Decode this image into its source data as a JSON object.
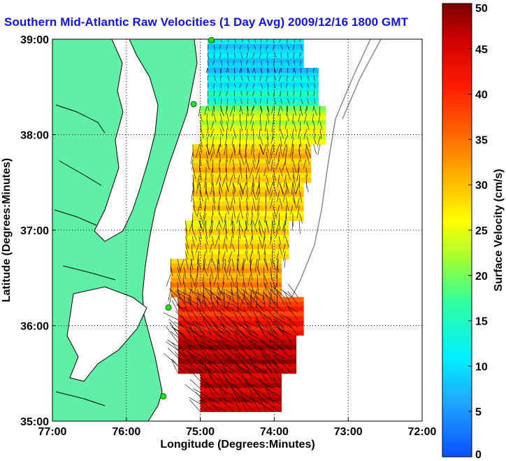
{
  "title": "Southern Mid-Atlantic Raw Velocities (1 Day Avg) 2009/12/16 1800 GMT",
  "colors": {
    "land": "#5ff0a5",
    "coast": "#000000",
    "title": "#1010e8",
    "station": "#22dd22"
  },
  "chart_data": {
    "type": "heatmap",
    "title": "Southern Mid-Atlantic Raw Velocities (1 Day Avg) 2009/12/16 1800 GMT",
    "xlabel": "Longitude (Degrees:Minutes)",
    "ylabel": "Latitude (Degrees:Minutes)",
    "x_ticks": [
      {
        "value": -77,
        "label": "77:00"
      },
      {
        "value": -76,
        "label": "76:00"
      },
      {
        "value": -75,
        "label": "75:00"
      },
      {
        "value": -74,
        "label": "74:00"
      },
      {
        "value": -73,
        "label": "73:00"
      },
      {
        "value": -72,
        "label": "72:00"
      }
    ],
    "y_ticks": [
      {
        "value": 35,
        "label": "35:00"
      },
      {
        "value": 36,
        "label": "36:00"
      },
      {
        "value": 37,
        "label": "37:00"
      },
      {
        "value": 38,
        "label": "38:00"
      },
      {
        "value": 39,
        "label": "39:00"
      }
    ],
    "xlim": [
      -77,
      -72
    ],
    "ylim": [
      35,
      39
    ],
    "grid": true,
    "colorbar": {
      "label": "Surface Velocity (cm/s)",
      "min": 0,
      "max": 50,
      "ticks": [
        {
          "value": 0,
          "label": "0"
        },
        {
          "value": 5,
          "label": "5"
        },
        {
          "value": 10,
          "label": "10"
        },
        {
          "value": 15,
          "label": "15"
        },
        {
          "value": 20,
          "label": "20"
        },
        {
          "value": 25,
          "label": "25"
        },
        {
          "value": 30,
          "label": "30"
        },
        {
          "value": 35,
          "label": "35"
        },
        {
          "value": 40,
          "label": "40"
        },
        {
          "value": 45,
          "label": "45"
        },
        {
          "value": 50,
          "label": "50"
        }
      ]
    },
    "speed_field": {
      "latitudes": [
        38.9,
        38.5,
        38.1,
        37.7,
        37.3,
        36.9,
        36.5,
        36.1,
        35.7,
        35.3
      ],
      "values_cm_s": [
        {
          "lat": 38.9,
          "lon_range": [
            -74.9,
            -73.6
          ],
          "speed": 10
        },
        {
          "lat": 38.5,
          "lon_range": [
            -74.9,
            -73.4
          ],
          "speed": 9
        },
        {
          "lat": 38.1,
          "lon_range": [
            -75.0,
            -73.3
          ],
          "speed": 22
        },
        {
          "lat": 37.7,
          "lon_range": [
            -75.1,
            -73.5
          ],
          "speed": 30
        },
        {
          "lat": 37.3,
          "lon_range": [
            -75.1,
            -73.6
          ],
          "speed": 29
        },
        {
          "lat": 36.9,
          "lon_range": [
            -75.2,
            -73.8
          ],
          "speed": 27
        },
        {
          "lat": 36.5,
          "lon_range": [
            -75.4,
            -73.9
          ],
          "speed": 30
        },
        {
          "lat": 36.1,
          "lon_range": [
            -75.3,
            -73.6
          ],
          "speed": 38
        },
        {
          "lat": 35.7,
          "lon_range": [
            -75.3,
            -73.7
          ],
          "speed": 47
        },
        {
          "lat": 35.3,
          "lon_range": [
            -75.0,
            -73.9
          ],
          "speed": 46
        }
      ]
    },
    "stations": [
      {
        "lon": -74.85,
        "lat": 38.99
      },
      {
        "lon": -75.09,
        "lat": 38.32
      },
      {
        "lon": -75.43,
        "lat": 36.19
      },
      {
        "lon": -75.5,
        "lat": 35.26
      }
    ]
  }
}
